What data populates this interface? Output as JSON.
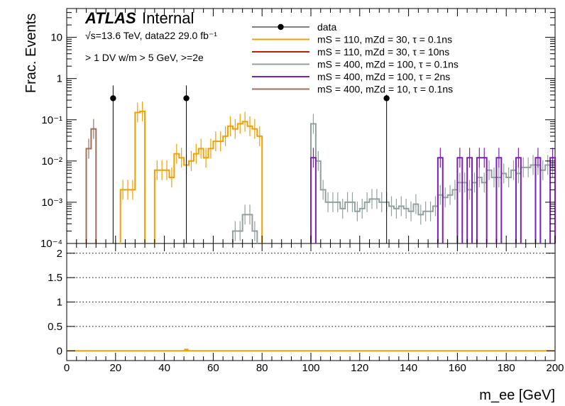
{
  "chart_data": {
    "type": "histogram",
    "title": "",
    "experiment_label": "ATLAS",
    "experiment_status": "Internal",
    "energy_label": "√s=13.6 TeV, data22 29.0 fb⁻¹",
    "selection_label": "> 1 DV w/m > 5 GeV, >=2e",
    "xlabel": "m_ee [GeV]",
    "ylabel": "Frac. Events",
    "ratio_ylabel": "",
    "xlim": [
      0,
      200
    ],
    "ylim": [
      0.0001,
      50
    ],
    "yscale": "log",
    "ratio_ylim": [
      -0.2,
      2.2
    ],
    "bin_width": 2,
    "x_ticks": [
      "0",
      "20",
      "40",
      "60",
      "80",
      "100",
      "120",
      "140",
      "160",
      "180",
      "200"
    ],
    "y_ticks": [
      "10⁻⁴",
      "10⁻³",
      "10⁻²",
      "10⁻¹",
      "1",
      "10"
    ],
    "ratio_ticks": [
      "0",
      "0.5",
      "1",
      "1.5",
      "2"
    ],
    "legend_position": "top-center",
    "series": [
      {
        "name": "data",
        "kind": "points",
        "color": "#000000",
        "points": [
          {
            "x": 19,
            "y": 0.333
          },
          {
            "x": 49,
            "y": 0.333
          },
          {
            "x": 131,
            "y": 0.333
          }
        ]
      },
      {
        "name": "mS = 110, mZd = 30, τ = 0.1ns",
        "kind": "hist",
        "color": "#f2a000",
        "bins": [
          [
            22,
            0.002
          ],
          [
            24,
            0.002
          ],
          [
            26,
            0.002
          ],
          [
            28,
            0.15
          ],
          [
            30,
            0.16
          ],
          [
            36,
            0.006
          ],
          [
            38,
            0.006
          ],
          [
            40,
            0.006
          ],
          [
            42,
            0.004
          ],
          [
            44,
            0.015
          ],
          [
            46,
            0.012
          ],
          [
            48,
            0.008
          ],
          [
            50,
            0.01
          ],
          [
            52,
            0.015
          ],
          [
            54,
            0.02
          ],
          [
            56,
            0.012
          ],
          [
            58,
            0.02
          ],
          [
            60,
            0.03
          ],
          [
            62,
            0.03
          ],
          [
            64,
            0.04
          ],
          [
            66,
            0.07
          ],
          [
            68,
            0.06
          ],
          [
            70,
            0.08
          ],
          [
            72,
            0.09
          ],
          [
            74,
            0.07
          ],
          [
            76,
            0.06
          ],
          [
            78,
            0.04
          ]
        ]
      },
      {
        "name": "mS = 110, mZd = 30, τ = 10ns",
        "kind": "hist",
        "color": "#c02000",
        "bins": []
      },
      {
        "name": "mS = 400, mZd = 100, τ = 0.1ns",
        "kind": "hist",
        "color": "#93a0a0",
        "bins": [
          [
            68,
            0.0002
          ],
          [
            70,
            0.0002
          ],
          [
            72,
            0.0005
          ],
          [
            74,
            0.0005
          ],
          [
            76,
            0.0002
          ],
          [
            100,
            0.08
          ],
          [
            102,
            0.01
          ],
          [
            104,
            0.002
          ],
          [
            106,
            0.001
          ],
          [
            108,
            0.001
          ],
          [
            110,
            0.001
          ],
          [
            112,
            0.0007
          ],
          [
            114,
            0.001
          ],
          [
            116,
            0.001
          ],
          [
            118,
            0.0006
          ],
          [
            120,
            0.0007
          ],
          [
            122,
            0.001
          ],
          [
            124,
            0.0012
          ],
          [
            126,
            0.0012
          ],
          [
            128,
            0.001
          ],
          [
            130,
            0.001
          ],
          [
            132,
            0.0008
          ],
          [
            134,
            0.0007
          ],
          [
            136,
            0.0008
          ],
          [
            138,
            0.0007
          ],
          [
            140,
            0.0006
          ],
          [
            142,
            0.0009
          ],
          [
            144,
            0.0005
          ],
          [
            146,
            0.0006
          ],
          [
            148,
            0.0006
          ],
          [
            150,
            0.0008
          ],
          [
            152,
            0.0015
          ],
          [
            154,
            0.0013
          ],
          [
            156,
            0.0015
          ],
          [
            158,
            0.002
          ],
          [
            160,
            0.003
          ],
          [
            162,
            0.003
          ],
          [
            164,
            0.002
          ],
          [
            166,
            0.003
          ],
          [
            168,
            0.004
          ],
          [
            170,
            0.003
          ],
          [
            172,
            0.006
          ],
          [
            174,
            0.004
          ],
          [
            176,
            0.004
          ],
          [
            178,
            0.005
          ],
          [
            180,
            0.004
          ],
          [
            182,
            0.006
          ],
          [
            184,
            0.005
          ],
          [
            186,
            0.007
          ],
          [
            188,
            0.007
          ],
          [
            190,
            0.008
          ],
          [
            192,
            0.008
          ],
          [
            194,
            0.006
          ],
          [
            196,
            0.008
          ],
          [
            198,
            0.007
          ]
        ]
      },
      {
        "name": "mS = 400, mZd = 100, τ = 2ns",
        "kind": "hist",
        "color": "#7b20b8",
        "bins": [
          [
            100,
            0.012
          ],
          [
            152,
            0.012
          ],
          [
            160,
            0.012
          ],
          [
            164,
            0.012
          ],
          [
            168,
            0.012
          ],
          [
            170,
            0.012
          ],
          [
            176,
            0.012
          ],
          [
            184,
            0.012
          ],
          [
            192,
            0.012
          ],
          [
            198,
            0.012
          ]
        ]
      },
      {
        "name": "mS = 400, mZd = 10, τ = 0.1ns",
        "kind": "hist",
        "color": "#a0705a",
        "bins": [
          [
            8,
            0.02
          ],
          [
            10,
            0.06
          ]
        ]
      }
    ],
    "ratio": [
      {
        "x": 49,
        "y": 0.0,
        "color": "#f2a000"
      }
    ]
  }
}
